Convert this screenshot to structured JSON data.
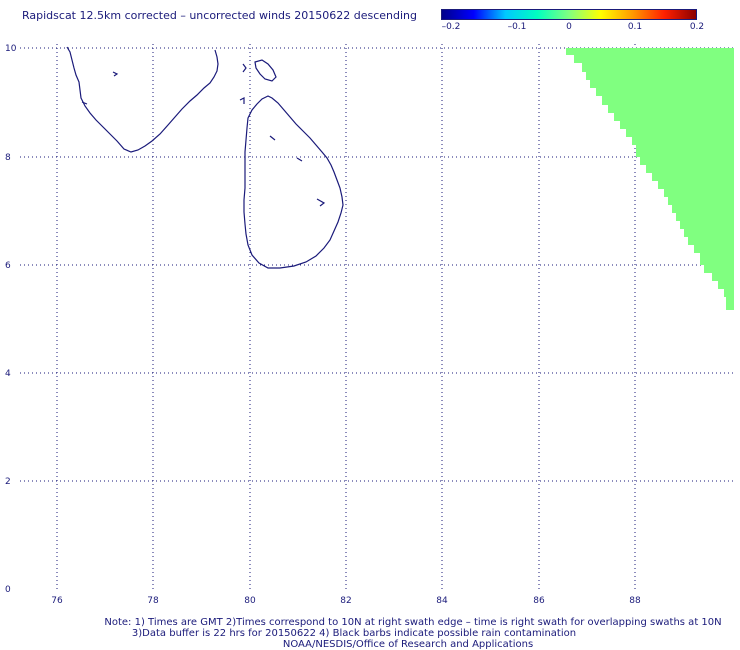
{
  "title": "Rapidscat 12.5km corrected – uncorrected winds 20150622 descending",
  "colorbar": {
    "labels": [
      "–0.2",
      "–0.1",
      "0",
      "0.1",
      "0.2"
    ],
    "colors": [
      "#00008b",
      "#0000ff",
      "#00c8ff",
      "#00ffc0",
      "#80ff80",
      "#ffff00",
      "#ff9900",
      "#ff2000",
      "#8b0000"
    ]
  },
  "axes": {
    "x_ticks": [
      "76",
      "78",
      "80",
      "82",
      "84",
      "86",
      "88"
    ],
    "y_ticks": [
      "0",
      "2",
      "4",
      "6",
      "8",
      "10"
    ]
  },
  "swath_color": "#80ff80",
  "coast_color": "#1a1a7a",
  "notes": [
    "Note: 1) Times are GMT 2)Times correspond to 10N at right swath edge – time is right swath for overlapping swaths at 10N",
    "3)Data buffer is 22 hrs for 20150622 4) Black barbs indicate possible rain contamination",
    "NOAA/NESDIS/Office of Research and Applications"
  ]
}
